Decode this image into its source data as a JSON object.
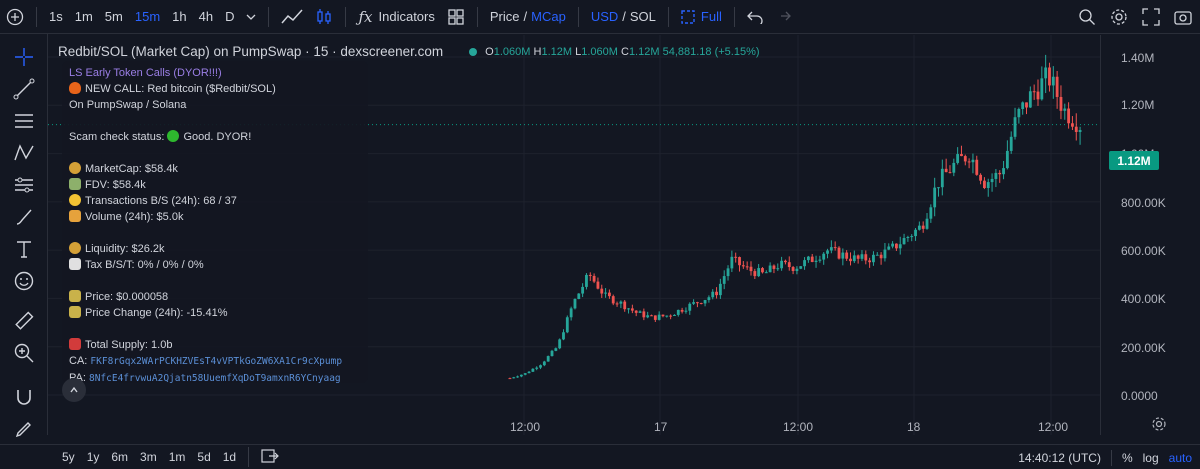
{
  "toolbar": {
    "timeframes": [
      "1s",
      "1m",
      "5m",
      "15m",
      "1h",
      "4h",
      "D"
    ],
    "active_timeframe": "15m",
    "indicators_label": "Indicators",
    "price_label": "Price",
    "mcap_label": "MCap",
    "slash": "/",
    "usd_label": "USD",
    "sol_label": "SOL",
    "full_label": "Full"
  },
  "legend": {
    "title": "Redbit/SOL (Market Cap) on PumpSwap · 15 · dexscreener.com",
    "o_key": "O",
    "o_val": "1.060M",
    "h_key": "H",
    "h_val": "1.12M",
    "l_key": "L",
    "l_val": "1.060M",
    "c_key": "C",
    "c_val": "1.12M",
    "change": "54,881.18 (+5.15%)"
  },
  "overlay": {
    "header": "LS Early Token Calls (DYOR!!!)",
    "line1": "NEW CALL: Red bitcoin ($Redbit/SOL)",
    "line2": "On PumpSwap / Solana",
    "scam": "Scam check status:",
    "scam_val": "Good. DYOR!",
    "marketcap": "MarketCap: $58.4k",
    "fdv": "FDV: $58.4k",
    "tx": "Transactions B/S (24h): 68 / 37",
    "volume": "Volume (24h): $5.0k",
    "liquidity": "Liquidity: $26.2k",
    "tax": "Tax B/S/T: 0% / 0% / 0%",
    "price": "Price: $0.000058",
    "price_change": "Price Change (24h): -15.41%",
    "supply": "Total Supply: 1.0b",
    "ca_key": "CA:",
    "ca": "FKF8rGqx2WArPCKHZVEsT4vVPTkGoZW6XA1Cr9cXpump",
    "pa_key": "PA:",
    "pa": "8NfcE4frvwuA2Qjatn58UuemfXqDoT9amxnR6YCnyaag"
  },
  "price_axis": {
    "labels": [
      "1.40M",
      "1.20M",
      "1.00M",
      "800.00K",
      "600.00K",
      "400.00K",
      "200.00K",
      "0.0000"
    ],
    "current": "1.12M"
  },
  "time_axis": {
    "labels": [
      "12:00",
      "17",
      "12:00",
      "18",
      "12:00"
    ]
  },
  "bottombar": {
    "ranges": [
      "5y",
      "1y",
      "6m",
      "3m",
      "1m",
      "5d",
      "1d"
    ],
    "clock": "14:40:12 (UTC)",
    "percent": "%",
    "log": "log",
    "auto": "auto"
  },
  "colors": {
    "up": "#26a69a",
    "down": "#ef5350",
    "accent": "#2962ff",
    "current_price_bg": "#089981"
  },
  "chart_data": {
    "type": "candlestick",
    "interval": "15m",
    "ylim": [
      0,
      1400000
    ],
    "y_ticks": [
      "1.40M",
      "1.20M",
      "1.00M",
      "800.00K",
      "600.00K",
      "400.00K",
      "200.00K",
      "0.0000"
    ],
    "x_ticks": [
      "12:00",
      "17",
      "12:00",
      "18",
      "12:00"
    ],
    "series": [
      {
        "values": [
          70000,
          90000,
          130000,
          200000,
          380000,
          500000,
          410000,
          380000,
          340000,
          320000,
          330000,
          360000,
          390000,
          420000,
          560000,
          520000,
          500000,
          540000,
          530000,
          560000,
          600000,
          580000,
          560000,
          570000,
          600000,
          650000,
          700000,
          880000,
          950000,
          1000000,
          880000,
          920000,
          1150000,
          1250000,
          1320000,
          1180000,
          1120000
        ]
      }
    ]
  }
}
